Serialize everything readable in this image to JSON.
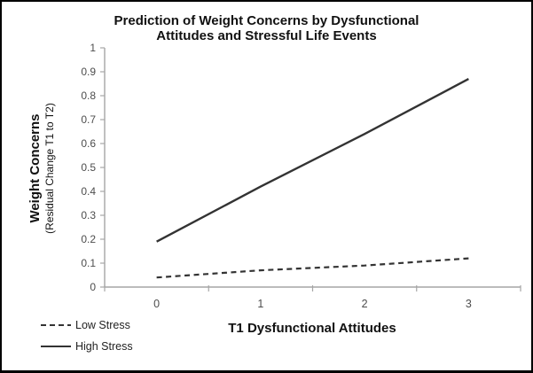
{
  "chart_data": {
    "type": "line",
    "title": "Prediction of Weight Concerns by Dysfunctional Attitudes and Stressful Life Events",
    "title_line1": "Prediction of Weight Concerns by Dysfunctional",
    "title_line2": "Attitudes and Stressful Life Events",
    "xlabel": "T1 Dysfunctional Attitudes",
    "ylabel": "Weight Concerns",
    "ylabel_sub": "(Residual Change T1 to T2)",
    "categories": [
      "0",
      "1",
      "2",
      "3"
    ],
    "y_tick_labels": [
      "0",
      "0.1",
      "0.2",
      "0.3",
      "0.4",
      "0.5",
      "0.6",
      "0.7",
      "0.8",
      "0.9",
      "1"
    ],
    "ylim": [
      0,
      1
    ],
    "grid": false,
    "legend_position": "bottom-left",
    "series": [
      {
        "name": "Low Stress",
        "style": "dashed",
        "values": [
          0.04,
          0.07,
          0.09,
          0.12
        ]
      },
      {
        "name": "High Stress",
        "style": "solid",
        "values": [
          0.19,
          0.42,
          0.64,
          0.87
        ]
      }
    ]
  },
  "colors": {
    "background": "#ffffff",
    "border": "#000000",
    "line": "#333333",
    "axis": "#a6a6a6",
    "tick_text": "#4d4d4d",
    "title_text": "#111111"
  }
}
